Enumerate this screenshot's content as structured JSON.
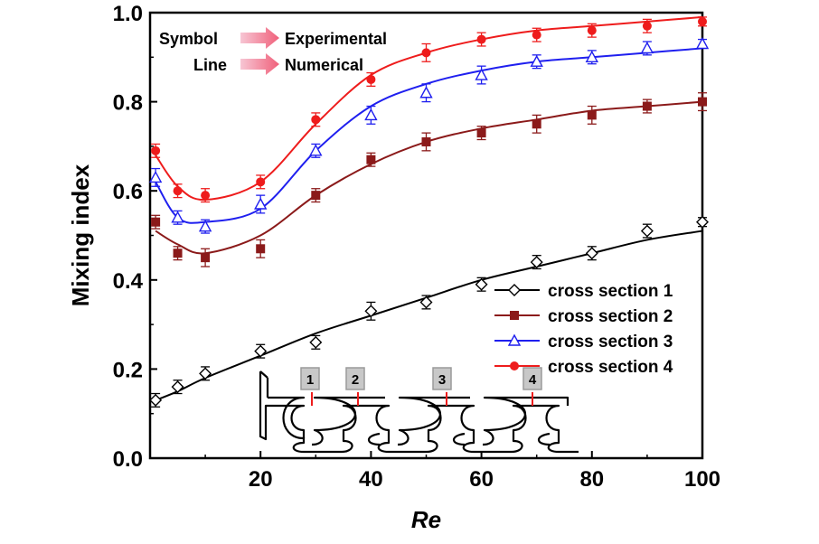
{
  "chart_data": {
    "type": "line",
    "xlabel": "Re",
    "ylabel": "Mixing index",
    "xlim": [
      0,
      100
    ],
    "ylim": [
      0,
      1.0
    ],
    "xticks": [
      20,
      40,
      60,
      80,
      100
    ],
    "yticks": [
      0.0,
      0.2,
      0.4,
      0.6,
      0.8,
      1.0
    ],
    "xtick_labels": [
      "20",
      "40",
      "60",
      "80",
      "100"
    ],
    "ytick_labels": [
      "0.0",
      "0.2",
      "0.4",
      "0.6",
      "0.8",
      "1.0"
    ],
    "grid": false,
    "legend_position": "lower-right",
    "annotation": {
      "symbol_label": "Symbol",
      "symbol_meaning": "Experimental",
      "line_label": "Line",
      "line_meaning": "Numerical",
      "section_markers": [
        "1",
        "2",
        "3",
        "4"
      ]
    },
    "x": [
      1,
      5,
      10,
      20,
      30,
      40,
      50,
      60,
      70,
      80,
      90,
      100
    ],
    "series": [
      {
        "name": "cross section 1",
        "color": "#000000",
        "marker": "diamond-open",
        "experimental": [
          0.13,
          0.16,
          0.19,
          0.24,
          0.26,
          0.33,
          0.35,
          0.39,
          0.44,
          0.46,
          0.51,
          0.53
        ],
        "error": [
          0.015,
          0.015,
          0.015,
          0.015,
          0.015,
          0.02,
          0.015,
          0.015,
          0.015,
          0.015,
          0.015,
          0.01
        ],
        "numerical": [
          0.13,
          0.15,
          0.18,
          0.23,
          0.28,
          0.32,
          0.36,
          0.4,
          0.43,
          0.46,
          0.49,
          0.51
        ]
      },
      {
        "name": "cross section 2",
        "color": "#8b1a1a",
        "marker": "square-filled",
        "experimental": [
          0.53,
          0.46,
          0.45,
          0.47,
          0.59,
          0.67,
          0.71,
          0.73,
          0.75,
          0.77,
          0.79,
          0.8
        ],
        "error": [
          0.015,
          0.015,
          0.02,
          0.02,
          0.015,
          0.015,
          0.02,
          0.015,
          0.02,
          0.02,
          0.015,
          0.02
        ],
        "numerical": [
          0.51,
          0.48,
          0.46,
          0.5,
          0.59,
          0.66,
          0.71,
          0.74,
          0.76,
          0.78,
          0.79,
          0.8
        ]
      },
      {
        "name": "cross section 3",
        "color": "#1f1fef",
        "marker": "triangle-open",
        "experimental": [
          0.63,
          0.54,
          0.52,
          0.57,
          0.69,
          0.77,
          0.82,
          0.86,
          0.89,
          0.9,
          0.92,
          0.93
        ],
        "error": [
          0.02,
          0.015,
          0.015,
          0.02,
          0.015,
          0.02,
          0.02,
          0.02,
          0.015,
          0.015,
          0.015,
          0.01
        ],
        "numerical": [
          0.62,
          0.54,
          0.53,
          0.56,
          0.69,
          0.79,
          0.84,
          0.87,
          0.89,
          0.9,
          0.91,
          0.92
        ]
      },
      {
        "name": "cross section 4",
        "color": "#ee1c1c",
        "marker": "circle-filled",
        "experimental": [
          0.69,
          0.6,
          0.59,
          0.62,
          0.76,
          0.85,
          0.91,
          0.94,
          0.95,
          0.96,
          0.97,
          0.98
        ],
        "error": [
          0.015,
          0.015,
          0.015,
          0.015,
          0.015,
          0.015,
          0.02,
          0.015,
          0.015,
          0.015,
          0.015,
          0.01
        ],
        "numerical": [
          0.68,
          0.61,
          0.58,
          0.62,
          0.75,
          0.86,
          0.91,
          0.94,
          0.96,
          0.97,
          0.98,
          0.99
        ]
      }
    ]
  }
}
